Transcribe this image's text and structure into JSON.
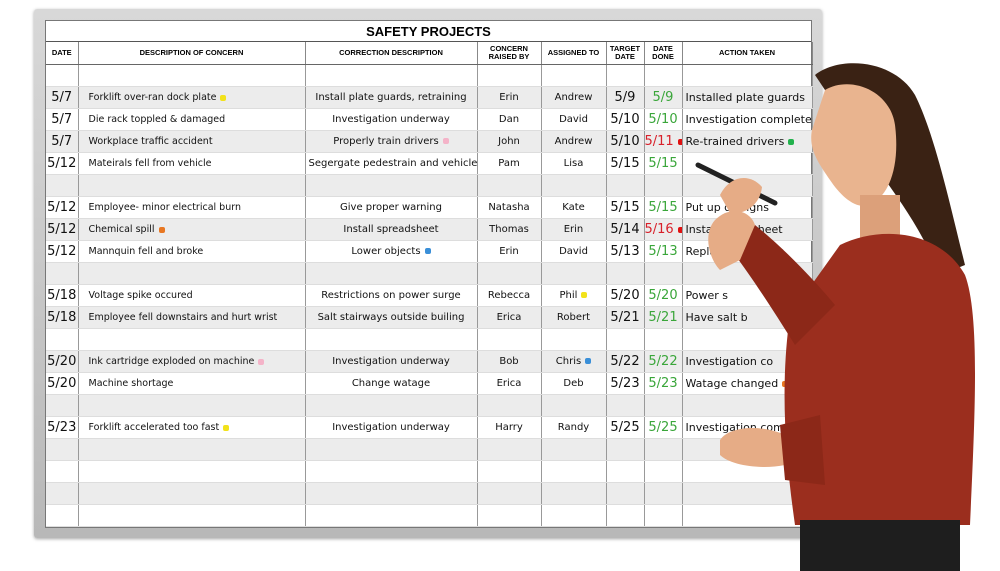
{
  "board": {
    "title": "SAFETY PROJECTS",
    "columns": [
      "DATE",
      "DESCRIPTION OF CONCERN",
      "CORRECTION DESCRIPTION",
      "CONCERN RAISED BY",
      "ASSIGNED TO",
      "TARGET DATE",
      "DATE DONE",
      "ACTION TAKEN"
    ],
    "marker_colors": {
      "yellow": "#f2e21a",
      "pink": "#f4b3c8",
      "orange": "#e87722",
      "blue": "#3a8fd8",
      "red": "#e01010",
      "green": "#22b14c"
    },
    "rows": [
      {
        "date": "",
        "concern": "",
        "concern_mark": "",
        "correction": "",
        "correction_mark": "",
        "raised_by": "",
        "assigned": "",
        "assigned_mark": "",
        "target": "",
        "done": "",
        "done_status": "",
        "done_mark": "",
        "action": "",
        "action_mark": ""
      },
      {
        "date": "5/7",
        "concern": "Forklift over-ran dock plate",
        "concern_mark": "yellow",
        "correction": "Install plate guards, retraining",
        "correction_mark": "",
        "raised_by": "Erin",
        "assigned": "Andrew",
        "assigned_mark": "",
        "target": "5/9",
        "done": "5/9",
        "done_status": "green",
        "done_mark": "",
        "action": "Installed plate guards",
        "action_mark": ""
      },
      {
        "date": "5/7",
        "concern": "Die rack toppled & damaged",
        "concern_mark": "",
        "correction": "Investigation underway",
        "correction_mark": "",
        "raised_by": "Dan",
        "assigned": "David",
        "assigned_mark": "",
        "target": "5/10",
        "done": "5/10",
        "done_status": "green",
        "done_mark": "",
        "action": "Investigation complete",
        "action_mark": ""
      },
      {
        "date": "5/7",
        "concern": "Workplace traffic accident",
        "concern_mark": "",
        "correction": "Properly train drivers",
        "correction_mark": "pink",
        "raised_by": "John",
        "assigned": "Andrew",
        "assigned_mark": "",
        "target": "5/10",
        "done": "5/11",
        "done_status": "red",
        "done_mark": "red",
        "action": "Re-trained drivers",
        "action_mark": "green"
      },
      {
        "date": "5/12",
        "concern": "Mateirals fell from vehicle",
        "concern_mark": "",
        "correction": "Segergate pedestrain and vehicles",
        "correction_mark": "",
        "raised_by": "Pam",
        "assigned": "Lisa",
        "assigned_mark": "",
        "target": "5/15",
        "done": "5/15",
        "done_status": "green",
        "done_mark": "",
        "action": "",
        "action_mark": ""
      },
      {
        "date": "",
        "concern": "",
        "concern_mark": "",
        "correction": "",
        "correction_mark": "",
        "raised_by": "",
        "assigned": "",
        "assigned_mark": "",
        "target": "",
        "done": "",
        "done_status": "",
        "done_mark": "",
        "action": "",
        "action_mark": ""
      },
      {
        "date": "5/12",
        "concern": "Employee- minor electrical burn",
        "concern_mark": "",
        "correction": "Give proper warning",
        "correction_mark": "",
        "raised_by": "Natasha",
        "assigned": "Kate",
        "assigned_mark": "",
        "target": "5/15",
        "done": "5/15",
        "done_status": "green",
        "done_mark": "",
        "action": "Put up ca      signs",
        "action_mark": ""
      },
      {
        "date": "5/12",
        "concern": "Chemical spill",
        "concern_mark": "orange",
        "correction": "Install spreadsheet",
        "correction_mark": "",
        "raised_by": "Thomas",
        "assigned": "Erin",
        "assigned_mark": "",
        "target": "5/14",
        "done": "5/16",
        "done_status": "red",
        "done_mark": "red",
        "action": "Installed s    dsheet",
        "action_mark": ""
      },
      {
        "date": "5/12",
        "concern": "Mannquin fell and broke",
        "concern_mark": "",
        "correction": "Lower objects",
        "correction_mark": "blue",
        "raised_by": "Erin",
        "assigned": "David",
        "assigned_mark": "",
        "target": "5/13",
        "done": "5/13",
        "done_status": "green",
        "done_mark": "",
        "action": "Replaced m    equin",
        "action_mark": ""
      },
      {
        "date": "",
        "concern": "",
        "concern_mark": "",
        "correction": "",
        "correction_mark": "",
        "raised_by": "",
        "assigned": "",
        "assigned_mark": "",
        "target": "",
        "done": "",
        "done_status": "",
        "done_mark": "",
        "action": "",
        "action_mark": ""
      },
      {
        "date": "5/18",
        "concern": "Voltage spike occured",
        "concern_mark": "",
        "correction": "Restrictions on power surge",
        "correction_mark": "",
        "raised_by": "Rebecca",
        "assigned": "Phil",
        "assigned_mark": "yellow",
        "target": "5/20",
        "done": "5/20",
        "done_status": "green",
        "done_mark": "",
        "action": "Power s",
        "action_mark": ""
      },
      {
        "date": "5/18",
        "concern": "Employee fell downstairs and hurt wrist",
        "concern_mark": "",
        "correction": "Salt stairways outside builing",
        "correction_mark": "",
        "raised_by": "Erica",
        "assigned": "Robert",
        "assigned_mark": "",
        "target": "5/21",
        "done": "5/21",
        "done_status": "green",
        "done_mark": "",
        "action": "Have salt b",
        "action_mark": ""
      },
      {
        "date": "",
        "concern": "",
        "concern_mark": "",
        "correction": "",
        "correction_mark": "",
        "raised_by": "",
        "assigned": "",
        "assigned_mark": "",
        "target": "",
        "done": "",
        "done_status": "",
        "done_mark": "",
        "action": "",
        "action_mark": ""
      },
      {
        "date": "5/20",
        "concern": "Ink cartridge exploded on machine",
        "concern_mark": "pink",
        "correction": "Investigation underway",
        "correction_mark": "",
        "raised_by": "Bob",
        "assigned": "Chris",
        "assigned_mark": "blue",
        "target": "5/22",
        "done": "5/22",
        "done_status": "green",
        "done_mark": "",
        "action": "Investigation co",
        "action_mark": ""
      },
      {
        "date": "5/20",
        "concern": "Machine shortage",
        "concern_mark": "",
        "correction": "Change watage",
        "correction_mark": "",
        "raised_by": "Erica",
        "assigned": "Deb",
        "assigned_mark": "",
        "target": "5/23",
        "done": "5/23",
        "done_status": "green",
        "done_mark": "",
        "action": "Watage changed",
        "action_mark": "orange"
      },
      {
        "date": "",
        "concern": "",
        "concern_mark": "",
        "correction": "",
        "correction_mark": "",
        "raised_by": "",
        "assigned": "",
        "assigned_mark": "",
        "target": "",
        "done": "",
        "done_status": "",
        "done_mark": "",
        "action": "",
        "action_mark": ""
      },
      {
        "date": "5/23",
        "concern": "Forklift accelerated too fast",
        "concern_mark": "yellow",
        "correction": "Investigation underway",
        "correction_mark": "",
        "raised_by": "Harry",
        "assigned": "Randy",
        "assigned_mark": "",
        "target": "5/25",
        "done": "5/25",
        "done_status": "green",
        "done_mark": "",
        "action": "Investigation compl",
        "action_mark": ""
      },
      {
        "date": "",
        "concern": "",
        "concern_mark": "",
        "correction": "",
        "correction_mark": "",
        "raised_by": "",
        "assigned": "",
        "assigned_mark": "",
        "target": "",
        "done": "",
        "done_status": "",
        "done_mark": "",
        "action": "",
        "action_mark": ""
      },
      {
        "date": "",
        "concern": "",
        "concern_mark": "",
        "correction": "",
        "correction_mark": "",
        "raised_by": "",
        "assigned": "",
        "assigned_mark": "",
        "target": "",
        "done": "",
        "done_status": "",
        "done_mark": "",
        "action": "",
        "action_mark": ""
      },
      {
        "date": "",
        "concern": "",
        "concern_mark": "",
        "correction": "",
        "correction_mark": "",
        "raised_by": "",
        "assigned": "",
        "assigned_mark": "",
        "target": "",
        "done": "",
        "done_status": "",
        "done_mark": "",
        "action": "",
        "action_mark": ""
      },
      {
        "date": "",
        "concern": "",
        "concern_mark": "",
        "correction": "",
        "correction_mark": "",
        "raised_by": "",
        "assigned": "",
        "assigned_mark": "",
        "target": "",
        "done": "",
        "done_status": "",
        "done_mark": "",
        "action": "",
        "action_mark": ""
      }
    ]
  }
}
